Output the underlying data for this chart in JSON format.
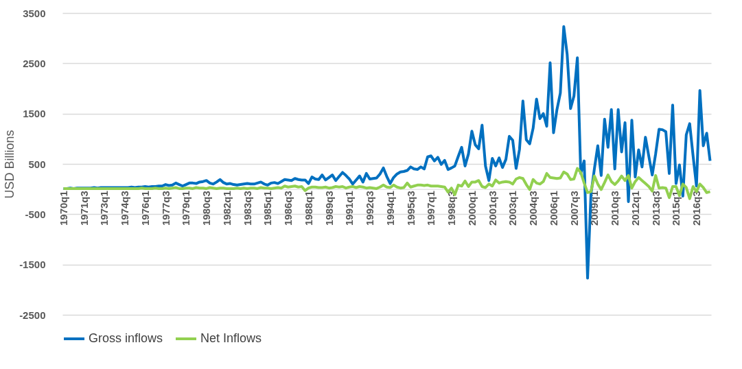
{
  "chart_data": {
    "type": "line",
    "ylabel": "USD Billions",
    "categories": [
      "1970q1",
      null,
      null,
      null,
      null,
      null,
      "1971q3",
      null,
      null,
      null,
      null,
      null,
      "1973q1",
      null,
      null,
      null,
      null,
      null,
      "1974q3",
      null,
      null,
      null,
      null,
      null,
      "1976q1",
      null,
      null,
      null,
      null,
      null,
      "1977q3",
      null,
      null,
      null,
      null,
      null,
      "1979q1",
      null,
      null,
      null,
      null,
      null,
      "1980q3",
      null,
      null,
      null,
      null,
      null,
      "1982q1",
      null,
      null,
      null,
      null,
      null,
      "1983q3",
      null,
      null,
      null,
      null,
      null,
      "1985q1",
      null,
      null,
      null,
      null,
      null,
      "1986q3",
      null,
      null,
      null,
      null,
      null,
      "1988q1",
      null,
      null,
      null,
      null,
      null,
      "1989q3",
      null,
      null,
      null,
      null,
      null,
      "1991q1",
      null,
      null,
      null,
      null,
      null,
      "1992q3",
      null,
      null,
      null,
      null,
      null,
      "1994q1",
      null,
      null,
      null,
      null,
      null,
      "1995q3",
      null,
      null,
      null,
      null,
      null,
      "1997q1",
      null,
      null,
      null,
      null,
      null,
      "1998q3",
      null,
      null,
      null,
      null,
      null,
      "2000q1",
      null,
      null,
      null,
      null,
      null,
      "2001q3",
      null,
      null,
      null,
      null,
      null,
      "2003q1",
      null,
      null,
      null,
      null,
      null,
      "2004q3",
      null,
      null,
      null,
      null,
      null,
      "2006q1",
      null,
      null,
      null,
      null,
      null,
      "2007q3",
      null,
      null,
      null,
      null,
      null,
      "2009q1",
      null,
      null,
      null,
      null,
      null,
      "2010q3",
      null,
      null,
      null,
      null,
      null,
      "2012q1",
      null,
      null,
      null,
      null,
      null,
      "2013q3",
      null,
      null,
      null,
      null,
      null,
      "2015q1",
      null,
      null,
      null,
      null,
      null,
      "2016q3",
      null,
      null,
      null,
      null
    ],
    "series": [
      {
        "name": "Gross inflows",
        "color": "#0070c0",
        "values": [
          10,
          10,
          20,
          10,
          20,
          20,
          20,
          20,
          20,
          30,
          20,
          30,
          30,
          30,
          30,
          30,
          30,
          30,
          30,
          30,
          40,
          30,
          40,
          40,
          50,
          40,
          50,
          50,
          60,
          60,
          90,
          70,
          80,
          120,
          90,
          60,
          90,
          120,
          120,
          110,
          140,
          150,
          170,
          120,
          100,
          140,
          190,
          130,
          100,
          110,
          90,
          80,
          90,
          100,
          110,
          100,
          100,
          120,
          140,
          100,
          80,
          120,
          130,
          110,
          150,
          190,
          180,
          170,
          210,
          190,
          180,
          180,
          110,
          240,
          200,
          190,
          280,
          180,
          230,
          280,
          170,
          250,
          330,
          270,
          200,
          100,
          180,
          260,
          140,
          310,
          200,
          210,
          220,
          300,
          420,
          250,
          110,
          230,
          300,
          340,
          350,
          370,
          440,
          400,
          390,
          440,
          400,
          640,
          660,
          560,
          630,
          490,
          570,
          390,
          420,
          460,
          650,
          830,
          460,
          700,
          1150,
          880,
          800,
          1270,
          460,
          170,
          610,
          460,
          620,
          430,
          590,
          1050,
          970,
          410,
          790,
          1750,
          980,
          900,
          1210,
          1790,
          1400,
          1500,
          1250,
          2510,
          1120,
          1580,
          1910,
          3230,
          2680,
          1600,
          1850,
          2610,
          310,
          560,
          -1770,
          -100,
          400,
          860,
          270,
          1390,
          830,
          1580,
          400,
          1580,
          740,
          1320,
          -250,
          1370,
          240,
          780,
          440,
          1030,
          650,
          280,
          700,
          1190,
          1180,
          1140,
          310,
          1670,
          110,
          480,
          -140,
          1080,
          1300,
          660,
          60,
          1960,
          860,
          1110,
          560
        ]
      },
      {
        "name": "Net Inflows",
        "color": "#92d050",
        "values": [
          10,
          10,
          10,
          10,
          10,
          10,
          10,
          10,
          10,
          10,
          10,
          10,
          10,
          10,
          10,
          10,
          10,
          10,
          10,
          10,
          10,
          10,
          10,
          20,
          10,
          10,
          10,
          20,
          10,
          10,
          20,
          10,
          20,
          30,
          10,
          10,
          20,
          20,
          10,
          30,
          20,
          20,
          10,
          30,
          20,
          10,
          20,
          20,
          10,
          10,
          10,
          20,
          10,
          20,
          10,
          20,
          20,
          10,
          30,
          20,
          20,
          10,
          20,
          30,
          20,
          60,
          40,
          50,
          60,
          40,
          50,
          -30,
          20,
          40,
          40,
          30,
          30,
          40,
          20,
          30,
          50,
          40,
          50,
          20,
          40,
          50,
          30,
          50,
          40,
          20,
          30,
          20,
          10,
          40,
          80,
          40,
          30,
          80,
          40,
          20,
          30,
          120,
          40,
          60,
          80,
          80,
          70,
          80,
          60,
          60,
          60,
          50,
          40,
          -60,
          20,
          -110,
          80,
          60,
          160,
          50,
          140,
          140,
          170,
          50,
          30,
          100,
          60,
          180,
          120,
          140,
          150,
          140,
          100,
          200,
          230,
          210,
          90,
          -10,
          190,
          120,
          100,
          150,
          310,
          230,
          220,
          210,
          220,
          340,
          300,
          190,
          200,
          410,
          330,
          120,
          -70,
          -50,
          260,
          100,
          -10,
          130,
          280,
          150,
          90,
          160,
          260,
          170,
          270,
          20,
          150,
          230,
          170,
          110,
          50,
          -40,
          270,
          20,
          30,
          20,
          -170,
          50,
          50,
          -130,
          100,
          30,
          -190,
          50,
          -50,
          100,
          30,
          -70,
          -50
        ]
      }
    ],
    "ylim": [
      -2500,
      3500
    ],
    "yticks": [
      -2500,
      -1500,
      -500,
      500,
      1500,
      2500,
      3500
    ],
    "grid": "y",
    "legend": "bottom"
  }
}
